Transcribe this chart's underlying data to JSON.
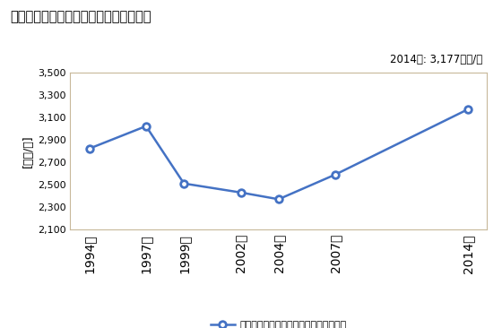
{
  "title": "商業の従業者一人当たり年間商品販売額",
  "ylabel": "[万円/人]",
  "annotation": "2014年: 3,177万円/人",
  "years": [
    1994,
    1997,
    1999,
    2002,
    2004,
    2007,
    2014
  ],
  "values": [
    2820,
    3020,
    2510,
    2430,
    2370,
    2590,
    3170
  ],
  "ylim": [
    2100,
    3500
  ],
  "yticks": [
    2100,
    2300,
    2500,
    2700,
    2900,
    3100,
    3300,
    3500
  ],
  "line_color": "#4472C4",
  "marker_color": "#4472C4",
  "background_color": "#FFFFFF",
  "plot_bg_color": "#FFFFFF",
  "legend_label": "商業の従業者一人当たり年間商品販売額",
  "border_color": "#BFBFBF",
  "spine_color": "#C8B89A"
}
